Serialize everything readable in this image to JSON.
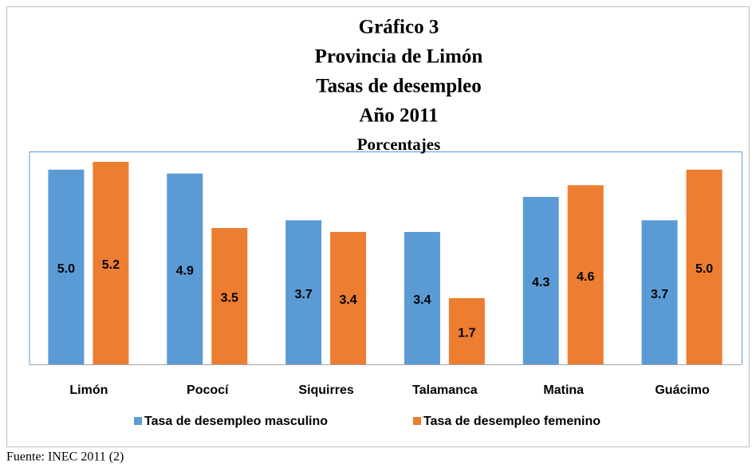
{
  "chart_data": {
    "type": "bar",
    "title": [
      "Gráfico 3",
      "Provincia de Limón",
      "Tasas de desempleo",
      "Año 2011"
    ],
    "subtitle": "Porcentajes",
    "categories": [
      "Limón",
      "Pococí",
      "Siquirres",
      "Talamanca",
      "Matina",
      "Guácimo"
    ],
    "series": [
      {
        "name": "Tasa de desempleo masculino",
        "color": "#5b9bd5",
        "values": [
          5.0,
          4.9,
          3.7,
          3.4,
          4.3,
          3.7
        ],
        "value_labels": [
          "5.0",
          "4.9",
          "3.7",
          "3.4",
          "4.3",
          "3.7"
        ]
      },
      {
        "name": "Tasa de desempleo femenino",
        "color": "#ed7d31",
        "values": [
          5.2,
          3.5,
          3.4,
          1.7,
          4.6,
          5.0
        ],
        "value_labels": [
          "5.2",
          "3.5",
          "3.4",
          "1.7",
          "4.6",
          "5.0"
        ]
      }
    ],
    "source": "Fuente: INEC 2011 (2)"
  }
}
